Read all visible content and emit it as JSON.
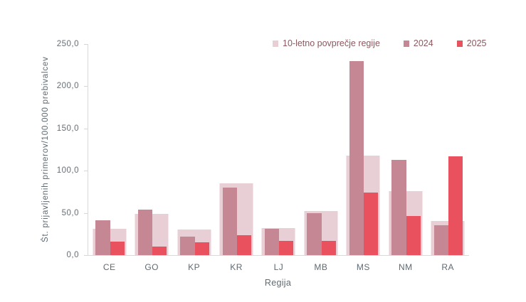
{
  "chart_data": {
    "type": "bar",
    "title": "",
    "xlabel": "Regija",
    "ylabel": "Št. prijavljenih primerov/100.000 prebivalcev",
    "categories": [
      "CE",
      "GO",
      "KP",
      "KR",
      "LJ",
      "MB",
      "MS",
      "NM",
      "RA"
    ],
    "series": [
      {
        "key": "avg",
        "name": "10-letno povprečje regije",
        "color": "#e8ced5",
        "values": [
          31,
          49,
          30,
          85,
          32,
          52,
          118,
          76,
          40
        ]
      },
      {
        "key": "y2024",
        "name": "2024",
        "color": "#c58794",
        "values": [
          41,
          54,
          22,
          80,
          31,
          50,
          230,
          113,
          35
        ]
      },
      {
        "key": "y2025",
        "name": "2025",
        "color": "#e9515f",
        "values": [
          16,
          10,
          15,
          24,
          17,
          17,
          74,
          46,
          117
        ]
      }
    ],
    "ylim": [
      0,
      250
    ],
    "yticks": [
      {
        "value": 0,
        "label": "0,0"
      },
      {
        "value": 50,
        "label": "50,0"
      },
      {
        "value": 100,
        "label": "100,0"
      },
      {
        "value": 150,
        "label": "150,0"
      },
      {
        "value": 200,
        "label": "200,0"
      },
      {
        "value": 250,
        "label": "250,0"
      }
    ],
    "grid": false,
    "legend_position": "top"
  },
  "colors": {
    "axis_line": "#d9d9d9",
    "axis_text": "#5f6a72",
    "legend_text": "#8a585e",
    "background": "#ffffff"
  }
}
